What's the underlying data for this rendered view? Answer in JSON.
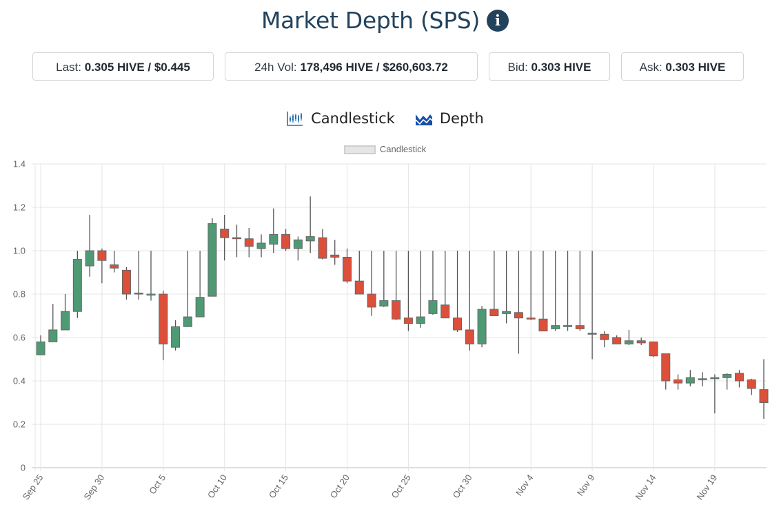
{
  "header": {
    "title": "Market Depth (SPS)",
    "info_icon": "info-circle-icon"
  },
  "stats": [
    {
      "label": "Last:",
      "value": "0.305 HIVE / $0.445"
    },
    {
      "label": "24h Vol:",
      "value": "178,496 HIVE / $260,603.72"
    },
    {
      "label": "Bid:",
      "value": "0.303 HIVE"
    },
    {
      "label": "Ask:",
      "value": "0.303 HIVE"
    }
  ],
  "tabs": [
    {
      "label": "Candlestick",
      "icon": "candlestick-chart-icon"
    },
    {
      "label": "Depth",
      "icon": "area-chart-icon"
    }
  ],
  "colors": {
    "up": "#4e9a74",
    "down": "#dc4f3a",
    "title": "#23435d",
    "depth_icon": "#1550a8",
    "candle_icon": "#2a6fb0"
  },
  "chart_data": {
    "type": "candlestick",
    "title": "",
    "legend": [
      "Candlestick"
    ],
    "legend_position": "top-center",
    "xlabel": "",
    "ylabel": "",
    "ylim": [
      0,
      1.4
    ],
    "yticks": [
      "0",
      "0.2",
      "0.4",
      "0.6",
      "0.8",
      "1.0",
      "1.2",
      "1.4"
    ],
    "xticks": [
      "Sep 25",
      "Sep 30",
      "Oct 5",
      "Oct 10",
      "Oct 15",
      "Oct 20",
      "Oct 25",
      "Oct 30",
      "Nov 4",
      "Nov 9",
      "Nov 14",
      "Nov 19"
    ],
    "grid": true,
    "candles": [
      {
        "date": "Sep 25",
        "o": 0.52,
        "h": 0.61,
        "l": 0.52,
        "c": 0.58
      },
      {
        "date": "Sep 26",
        "o": 0.58,
        "h": 0.755,
        "l": 0.58,
        "c": 0.635
      },
      {
        "date": "Sep 27",
        "o": 0.635,
        "h": 0.8,
        "l": 0.635,
        "c": 0.72
      },
      {
        "date": "Sep 28",
        "o": 0.72,
        "h": 1.0,
        "l": 0.69,
        "c": 0.96
      },
      {
        "date": "Sep 29",
        "o": 0.93,
        "h": 1.165,
        "l": 0.88,
        "c": 1.0
      },
      {
        "date": "Sep 30",
        "o": 1.0,
        "h": 1.01,
        "l": 0.85,
        "c": 0.955
      },
      {
        "date": "Oct 1",
        "o": 0.935,
        "h": 1.0,
        "l": 0.9,
        "c": 0.92
      },
      {
        "date": "Oct 2",
        "o": 0.91,
        "h": 0.925,
        "l": 0.775,
        "c": 0.8
      },
      {
        "date": "Oct 3",
        "o": 0.8,
        "h": 1.0,
        "l": 0.775,
        "c": 0.805
      },
      {
        "date": "Oct 4",
        "o": 0.8,
        "h": 1.0,
        "l": 0.77,
        "c": 0.8
      },
      {
        "date": "Oct 5",
        "o": 0.8,
        "h": 0.815,
        "l": 0.495,
        "c": 0.57
      },
      {
        "date": "Oct 6",
        "o": 0.555,
        "h": 0.68,
        "l": 0.54,
        "c": 0.65
      },
      {
        "date": "Oct 7",
        "o": 0.65,
        "h": 1.0,
        "l": 0.65,
        "c": 0.695
      },
      {
        "date": "Oct 8",
        "o": 0.695,
        "h": 1.0,
        "l": 0.695,
        "c": 0.785
      },
      {
        "date": "Oct 9",
        "o": 0.79,
        "h": 1.15,
        "l": 0.79,
        "c": 1.125
      },
      {
        "date": "Oct 10",
        "o": 1.1,
        "h": 1.165,
        "l": 0.955,
        "c": 1.06
      },
      {
        "date": "Oct 11",
        "o": 1.06,
        "h": 1.12,
        "l": 0.97,
        "c": 1.055
      },
      {
        "date": "Oct 12",
        "o": 1.055,
        "h": 1.105,
        "l": 0.97,
        "c": 1.02
      },
      {
        "date": "Oct 13",
        "o": 1.01,
        "h": 1.075,
        "l": 0.97,
        "c": 1.035
      },
      {
        "date": "Oct 14",
        "o": 1.03,
        "h": 1.195,
        "l": 0.99,
        "c": 1.075
      },
      {
        "date": "Oct 15",
        "o": 1.075,
        "h": 1.1,
        "l": 1.0,
        "c": 1.01
      },
      {
        "date": "Oct 16",
        "o": 1.01,
        "h": 1.065,
        "l": 0.955,
        "c": 1.05
      },
      {
        "date": "Oct 17",
        "o": 1.045,
        "h": 1.25,
        "l": 0.99,
        "c": 1.065
      },
      {
        "date": "Oct 18",
        "o": 1.06,
        "h": 1.1,
        "l": 0.96,
        "c": 0.965
      },
      {
        "date": "Oct 19",
        "o": 0.98,
        "h": 1.05,
        "l": 0.935,
        "c": 0.97
      },
      {
        "date": "Oct 20",
        "o": 0.97,
        "h": 1.01,
        "l": 0.85,
        "c": 0.86
      },
      {
        "date": "Oct 21",
        "o": 0.86,
        "h": 1.0,
        "l": 0.8,
        "c": 0.8
      },
      {
        "date": "Oct 22",
        "o": 0.8,
        "h": 1.0,
        "l": 0.7,
        "c": 0.74
      },
      {
        "date": "Oct 23",
        "o": 0.745,
        "h": 1.0,
        "l": 0.74,
        "c": 0.77
      },
      {
        "date": "Oct 24",
        "o": 0.77,
        "h": 1.0,
        "l": 0.68,
        "c": 0.685
      },
      {
        "date": "Oct 25",
        "o": 0.69,
        "h": 1.0,
        "l": 0.63,
        "c": 0.665
      },
      {
        "date": "Oct 26",
        "o": 0.665,
        "h": 1.0,
        "l": 0.645,
        "c": 0.695
      },
      {
        "date": "Oct 27",
        "o": 0.71,
        "h": 1.0,
        "l": 0.705,
        "c": 0.77
      },
      {
        "date": "Oct 28",
        "o": 0.75,
        "h": 1.0,
        "l": 0.69,
        "c": 0.69
      },
      {
        "date": "Oct 29",
        "o": 0.69,
        "h": 1.0,
        "l": 0.625,
        "c": 0.635
      },
      {
        "date": "Oct 30",
        "o": 0.635,
        "h": 1.0,
        "l": 0.54,
        "c": 0.57
      },
      {
        "date": "Oct 31",
        "o": 0.57,
        "h": 0.745,
        "l": 0.555,
        "c": 0.73
      },
      {
        "date": "Nov 1",
        "o": 0.73,
        "h": 1.0,
        "l": 0.7,
        "c": 0.7
      },
      {
        "date": "Nov 2",
        "o": 0.71,
        "h": 1.0,
        "l": 0.665,
        "c": 0.72
      },
      {
        "date": "Nov 3",
        "o": 0.715,
        "h": 1.0,
        "l": 0.525,
        "c": 0.69
      },
      {
        "date": "Nov 4",
        "o": 0.69,
        "h": 1.0,
        "l": 0.68,
        "c": 0.685
      },
      {
        "date": "Nov 5",
        "o": 0.685,
        "h": 1.0,
        "l": 0.63,
        "c": 0.63
      },
      {
        "date": "Nov 6",
        "o": 0.64,
        "h": 1.0,
        "l": 0.63,
        "c": 0.655
      },
      {
        "date": "Nov 7",
        "o": 0.65,
        "h": 1.0,
        "l": 0.63,
        "c": 0.655
      },
      {
        "date": "Nov 8",
        "o": 0.655,
        "h": 1.0,
        "l": 0.63,
        "c": 0.64
      },
      {
        "date": "Nov 9",
        "o": 0.62,
        "h": 1.0,
        "l": 0.5,
        "c": 0.615
      },
      {
        "date": "Nov 10",
        "o": 0.615,
        "h": 0.63,
        "l": 0.555,
        "c": 0.59
      },
      {
        "date": "Nov 11",
        "o": 0.6,
        "h": 0.61,
        "l": 0.57,
        "c": 0.57
      },
      {
        "date": "Nov 12",
        "o": 0.57,
        "h": 0.635,
        "l": 0.565,
        "c": 0.585
      },
      {
        "date": "Nov 13",
        "o": 0.585,
        "h": 0.6,
        "l": 0.565,
        "c": 0.575
      },
      {
        "date": "Nov 14",
        "o": 0.58,
        "h": 0.58,
        "l": 0.51,
        "c": 0.515
      },
      {
        "date": "Nov 15",
        "o": 0.525,
        "h": 0.525,
        "l": 0.36,
        "c": 0.4
      },
      {
        "date": "Nov 16",
        "o": 0.405,
        "h": 0.43,
        "l": 0.36,
        "c": 0.39
      },
      {
        "date": "Nov 17",
        "o": 0.39,
        "h": 0.45,
        "l": 0.375,
        "c": 0.415
      },
      {
        "date": "Nov 18",
        "o": 0.41,
        "h": 0.44,
        "l": 0.375,
        "c": 0.41
      },
      {
        "date": "Nov 19",
        "o": 0.41,
        "h": 0.43,
        "l": 0.25,
        "c": 0.415
      },
      {
        "date": "Nov 20",
        "o": 0.415,
        "h": 0.435,
        "l": 0.36,
        "c": 0.43
      },
      {
        "date": "Nov 21",
        "o": 0.435,
        "h": 0.45,
        "l": 0.37,
        "c": 0.4
      },
      {
        "date": "Nov 22",
        "o": 0.405,
        "h": 0.41,
        "l": 0.335,
        "c": 0.365
      },
      {
        "date": "Nov 23",
        "o": 0.36,
        "h": 0.5,
        "l": 0.225,
        "c": 0.3
      }
    ]
  }
}
